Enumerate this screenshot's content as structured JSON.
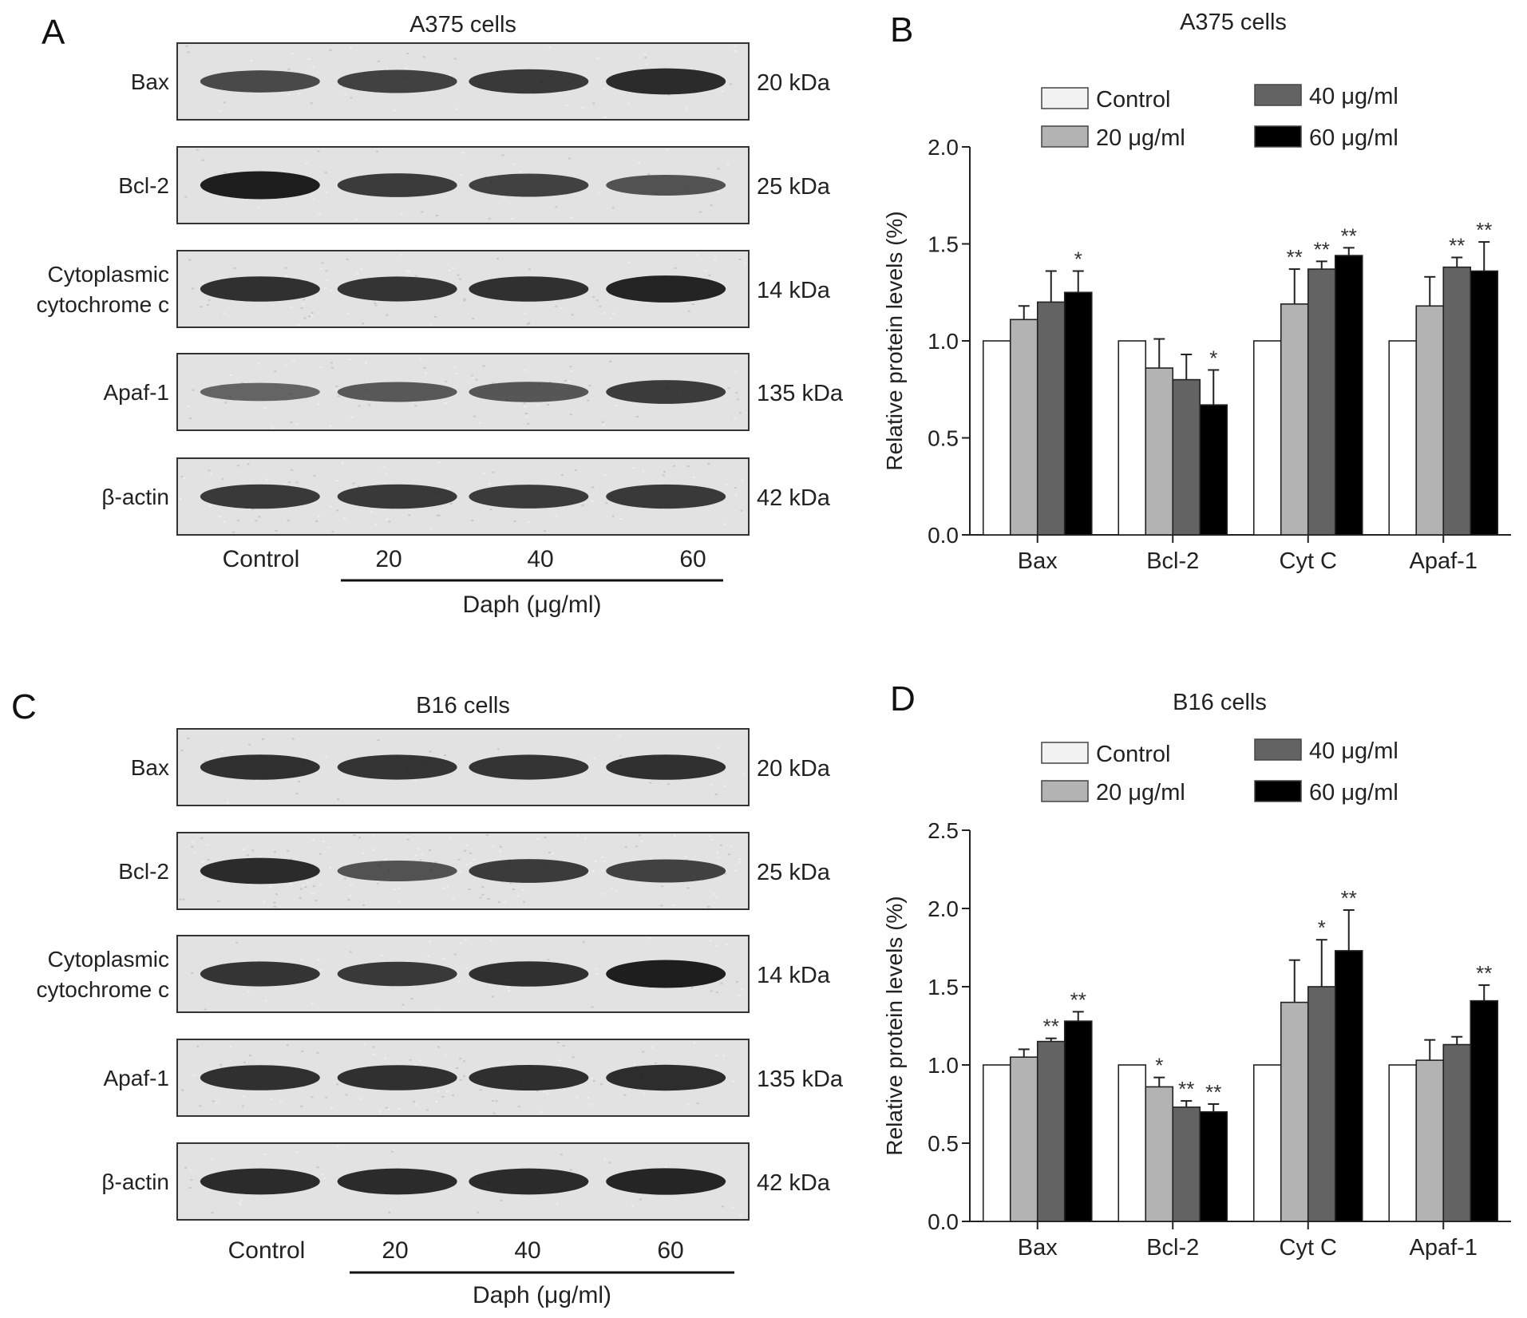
{
  "panels": [
    {
      "letter": "A",
      "title": "A375 cells",
      "blot_rows": [
        {
          "label": [
            "Bax"
          ],
          "kda": "20 kDa",
          "bands": [
            0.62,
            0.68,
            0.75,
            0.85
          ],
          "noise": 0.06
        },
        {
          "label": [
            "Bcl-2"
          ],
          "kda": "25 kDa",
          "bands": [
            0.95,
            0.72,
            0.68,
            0.55
          ],
          "noise": 0.06
        },
        {
          "label": [
            "Cytoplasmic",
            "cytochrome c"
          ],
          "kda": "14 kDa",
          "bands": [
            0.8,
            0.78,
            0.8,
            0.9
          ],
          "noise": 0.1
        },
        {
          "label": [
            "Apaf-1"
          ],
          "kda": "135 kDa",
          "bands": [
            0.4,
            0.5,
            0.52,
            0.72
          ],
          "noise": 0.09
        },
        {
          "label": [
            "β-actin"
          ],
          "kda": "42 kDa",
          "bands": [
            0.75,
            0.75,
            0.72,
            0.74
          ],
          "noise": 0.1
        }
      ],
      "lanes": [
        "Control",
        "20",
        "40",
        "60"
      ],
      "treatment_label": "Daph (μg/ml)"
    },
    {
      "letter": "C",
      "title": "B16 cells",
      "blot_rows": [
        {
          "label": [
            "Bax"
          ],
          "kda": "20 kDa",
          "bands": [
            0.8,
            0.78,
            0.78,
            0.8
          ],
          "noise": 0.04
        },
        {
          "label": [
            "Bcl-2"
          ],
          "kda": "25 kDa",
          "bands": [
            0.85,
            0.55,
            0.72,
            0.68
          ],
          "noise": 0.18
        },
        {
          "label": [
            "Cytoplasmic",
            "cytochrome c"
          ],
          "kda": "14 kDa",
          "bands": [
            0.78,
            0.75,
            0.8,
            0.95
          ],
          "noise": 0.06
        },
        {
          "label": [
            "Apaf-1"
          ],
          "kda": "135 kDa",
          "bands": [
            0.8,
            0.8,
            0.82,
            0.84
          ],
          "noise": 0.12
        },
        {
          "label": [
            "β-actin"
          ],
          "kda": "42 kDa",
          "bands": [
            0.85,
            0.85,
            0.85,
            0.88
          ],
          "noise": 0.05
        }
      ],
      "lanes": [
        "Control",
        "20",
        "40",
        "60"
      ],
      "treatment_label": "Daph (μg/ml)"
    }
  ],
  "chart_data": [
    {
      "letter": "B",
      "type": "bar",
      "title": "A375 cells",
      "xlabel": "",
      "ylabel": "Relative protein levels (%)",
      "ylim": [
        0,
        2.0
      ],
      "yticks": [
        "0.0",
        "0.5",
        "1.0",
        "1.5",
        "2.0"
      ],
      "categories": [
        "Bax",
        "Bcl-2",
        "Cyt C",
        "Apaf-1"
      ],
      "series": [
        {
          "name": "Control",
          "color": "#ffffff",
          "values": [
            1.0,
            1.0,
            1.0,
            1.0
          ],
          "errors": [
            0,
            0,
            0,
            0
          ],
          "sig": [
            "",
            "",
            "",
            ""
          ]
        },
        {
          "name": "20 μg/ml",
          "color": "#b3b3b3",
          "values": [
            1.11,
            0.86,
            1.19,
            1.18
          ],
          "errors": [
            0.07,
            0.15,
            0.18,
            0.15
          ],
          "sig": [
            "",
            "",
            "**",
            ""
          ]
        },
        {
          "name": "40 μg/ml",
          "color": "#636363",
          "values": [
            1.2,
            0.8,
            1.37,
            1.38
          ],
          "errors": [
            0.16,
            0.13,
            0.04,
            0.05
          ],
          "sig": [
            "",
            "",
            "**",
            "**"
          ]
        },
        {
          "name": "60 μg/ml",
          "color": "#000000",
          "values": [
            1.25,
            0.67,
            1.44,
            1.36
          ],
          "errors": [
            0.11,
            0.18,
            0.04,
            0.15
          ],
          "sig": [
            "*",
            "*",
            "**",
            "**"
          ]
        }
      ],
      "legend": "top"
    },
    {
      "letter": "D",
      "type": "bar",
      "title": "B16 cells",
      "xlabel": "",
      "ylabel": "Relative protein levels (%)",
      "ylim": [
        0,
        2.5
      ],
      "yticks": [
        "0.0",
        "0.5",
        "1.0",
        "1.5",
        "2.0",
        "2.5"
      ],
      "categories": [
        "Bax",
        "Bcl-2",
        "Cyt C",
        "Apaf-1"
      ],
      "series": [
        {
          "name": "Control",
          "color": "#ffffff",
          "values": [
            1.0,
            1.0,
            1.0,
            1.0
          ],
          "errors": [
            0,
            0,
            0,
            0
          ],
          "sig": [
            "",
            "",
            "",
            ""
          ]
        },
        {
          "name": "20 μg/ml",
          "color": "#b3b3b3",
          "values": [
            1.05,
            0.86,
            1.4,
            1.03
          ],
          "errors": [
            0.05,
            0.06,
            0.27,
            0.13
          ],
          "sig": [
            "",
            "*",
            "",
            ""
          ]
        },
        {
          "name": "40 μg/ml",
          "color": "#636363",
          "values": [
            1.15,
            0.73,
            1.5,
            1.13
          ],
          "errors": [
            0.02,
            0.04,
            0.3,
            0.05
          ],
          "sig": [
            "**",
            "**",
            "*",
            ""
          ]
        },
        {
          "name": "60 μg/ml",
          "color": "#000000",
          "values": [
            1.28,
            0.7,
            1.73,
            1.41
          ],
          "errors": [
            0.06,
            0.05,
            0.26,
            0.1
          ],
          "sig": [
            "**",
            "**",
            "**",
            "**"
          ]
        }
      ],
      "legend": "top"
    }
  ]
}
